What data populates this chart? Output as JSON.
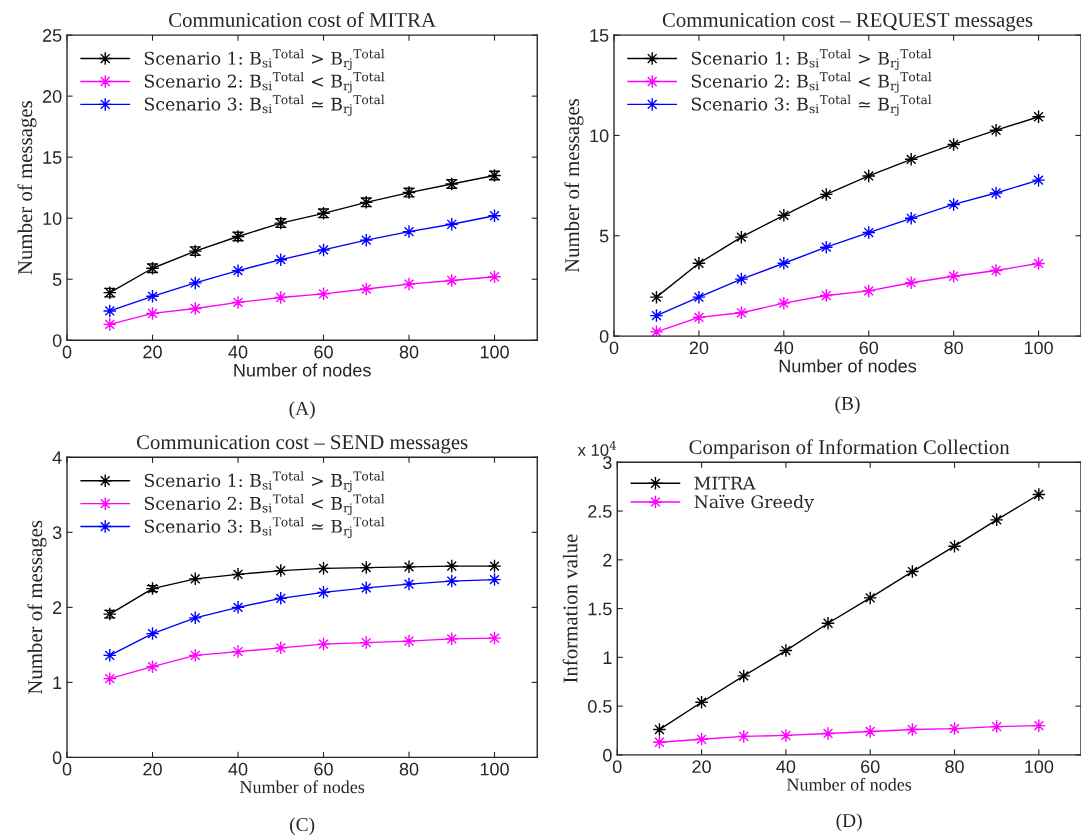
{
  "chart_data": [
    {
      "type": "line",
      "title": "Communication cost of MITRA",
      "xlabel": "Number of nodes",
      "ylabel": "Number of messages",
      "annotations": [
        "(A)"
      ],
      "x": [
        10,
        20,
        30,
        40,
        50,
        60,
        70,
        80,
        90,
        100
      ],
      "xlim": [
        0,
        110
      ],
      "xticks": [
        0,
        20,
        40,
        60,
        80,
        100
      ],
      "ylim": [
        0,
        25
      ],
      "yticks": [
        0,
        5,
        10,
        15,
        20,
        25
      ],
      "grid": false,
      "legend": "top left",
      "marker": "star",
      "line_style": "solid",
      "series": [
        {
          "name": "Scenario 1: B$_{si}$$^{Total}$ > B$_{rj}$$^{Total}$",
          "color": "#000000",
          "values": [
            3.9,
            5.9,
            7.3,
            8.5,
            9.6,
            10.4,
            11.3,
            12.1,
            12.8,
            13.5
          ],
          "errors": [
            0.35,
            0.35,
            0.35,
            0.35,
            0.35,
            0.35,
            0.35,
            0.35,
            0.35,
            0.35
          ]
        },
        {
          "name": "Scenario 2: B$_{si}$$^{Total}$ < B$_{rj}$$^{Total}$",
          "color": "#ff00ff",
          "values": [
            1.3,
            2.2,
            2.6,
            3.1,
            3.5,
            3.8,
            4.2,
            4.6,
            4.9,
            5.2
          ]
        },
        {
          "name": "Scenario 3: B$_{si}$$^{Total}$ ≃ B$_{rj}$$^{Total}$",
          "color": "#0000ff",
          "values": [
            2.4,
            3.6,
            4.7,
            5.7,
            6.6,
            7.4,
            8.2,
            8.9,
            9.5,
            10.2
          ]
        }
      ]
    },
    {
      "type": "line",
      "title": "Communication cost – REQUEST messages",
      "xlabel": "Number of nodes",
      "ylabel": "Number of messages",
      "annotations": [
        "(B)"
      ],
      "x": [
        10,
        20,
        30,
        40,
        50,
        60,
        70,
        80,
        90,
        100
      ],
      "xlim": [
        0,
        110
      ],
      "xticks": [
        0,
        20,
        40,
        60,
        80,
        100
      ],
      "ylim": [
        0,
        15
      ],
      "yticks": [
        0,
        5,
        10,
        15
      ],
      "grid": false,
      "legend": "top left",
      "marker": "star",
      "line_style": "solid",
      "series": [
        {
          "name": "Scenario 1: B$_{si}$$^{Total}$ > B$_{rj}$$^{Total}$",
          "color": "#000000",
          "values": [
            1.94,
            3.63,
            4.93,
            6.02,
            7.06,
            7.98,
            8.81,
            9.55,
            10.26,
            10.93
          ]
        },
        {
          "name": "Scenario 2: B$_{si}$$^{Total}$ < B$_{rj}$$^{Total}$",
          "color": "#ff00ff",
          "values": [
            0.21,
            0.93,
            1.16,
            1.64,
            2.02,
            2.25,
            2.66,
            2.98,
            3.27,
            3.62
          ]
        },
        {
          "name": "Scenario 3: B$_{si}$$^{Total}$ ≃ B$_{rj}$$^{Total}$",
          "color": "#0000ff",
          "values": [
            1.02,
            1.94,
            2.84,
            3.63,
            4.43,
            5.16,
            5.87,
            6.56,
            7.13,
            7.77
          ]
        }
      ]
    },
    {
      "type": "line",
      "title": "Communication cost – SEND messages",
      "xlabel": "Number of nodes",
      "ylabel": "Number of messages",
      "annotations": [
        "(C)"
      ],
      "x": [
        10,
        20,
        30,
        40,
        50,
        60,
        70,
        80,
        90,
        100
      ],
      "xlim": [
        0,
        110
      ],
      "xticks": [
        0,
        20,
        40,
        60,
        80,
        100
      ],
      "ylim": [
        0,
        4
      ],
      "yticks": [
        0,
        1,
        2,
        3,
        4
      ],
      "grid": false,
      "legend": "top left",
      "marker": "star",
      "line_style": "solid",
      "series": [
        {
          "name": "Scenario 1: B$_{si}$$^{Total}$ > B$_{rj}$$^{Total}$",
          "color": "#000000",
          "values": [
            1.91,
            2.25,
            2.38,
            2.44,
            2.49,
            2.52,
            2.53,
            2.54,
            2.55,
            2.55
          ],
          "errors": [
            0.05,
            0.04,
            null,
            null,
            null,
            null,
            null,
            null,
            null,
            null
          ]
        },
        {
          "name": "Scenario 2: B$_{si}$$^{Total}$ < B$_{rj}$$^{Total}$",
          "color": "#ff00ff",
          "values": [
            1.05,
            1.21,
            1.36,
            1.41,
            1.46,
            1.51,
            1.53,
            1.55,
            1.58,
            1.59
          ]
        },
        {
          "name": "Scenario 3: B$_{si}$$^{Total}$ ≃ B$_{rj}$$^{Total}$",
          "color": "#0000ff",
          "values": [
            1.36,
            1.65,
            1.86,
            2.0,
            2.12,
            2.2,
            2.26,
            2.31,
            2.35,
            2.37
          ]
        }
      ]
    },
    {
      "type": "line",
      "title": "Comparison of Information Collection",
      "xlabel": "Number of nodes",
      "ylabel": "Information value",
      "annotations": [
        "(D)",
        "x 10$^{4}$"
      ],
      "x": [
        10,
        20,
        30,
        40,
        50,
        60,
        70,
        80,
        90,
        100
      ],
      "xlim": [
        0,
        110
      ],
      "xticks": [
        0,
        20,
        40,
        60,
        80,
        100
      ],
      "ylim": [
        0,
        3
      ],
      "yticks": [
        0,
        0.5,
        1,
        1.5,
        2,
        2.5,
        3
      ],
      "grid": false,
      "legend": "top left",
      "marker": "star",
      "line_style": "solid",
      "series": [
        {
          "name": "MITRA",
          "color": "#000000",
          "values": [
            0.26,
            0.54,
            0.81,
            1.07,
            1.35,
            1.61,
            1.88,
            2.14,
            2.41,
            2.67
          ]
        },
        {
          "name": "Naïve Greedy",
          "color": "#ff00ff",
          "values": [
            0.13,
            0.16,
            0.19,
            0.2,
            0.22,
            0.24,
            0.26,
            0.27,
            0.29,
            0.3
          ]
        }
      ]
    }
  ]
}
